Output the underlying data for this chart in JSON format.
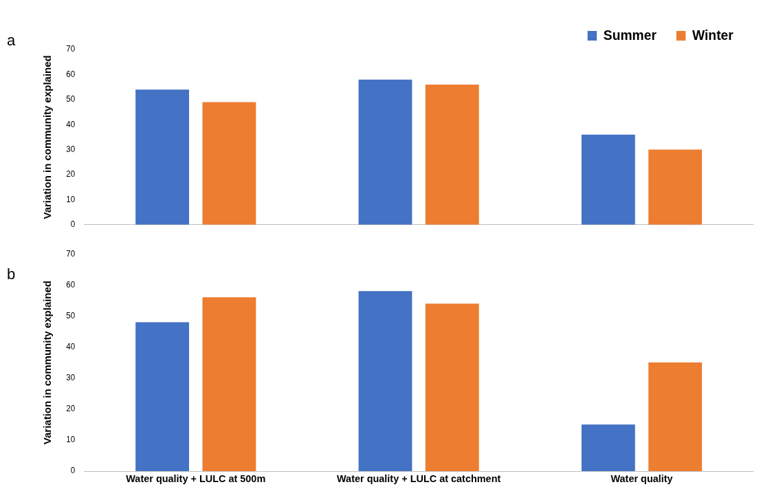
{
  "chart_data": [
    {
      "type": "bar",
      "title": "a",
      "ylabel": "Variation in community explained",
      "categories": [
        null,
        null,
        null
      ],
      "series": [
        {
          "name": "Summer",
          "color": "#4472c4",
          "values": [
            54,
            58,
            36
          ]
        },
        {
          "name": "Winter",
          "color": "#ed7d31",
          "values": [
            49,
            56,
            30
          ]
        }
      ],
      "ylim": [
        0,
        70
      ],
      "yticks": [
        0,
        10,
        20,
        30,
        40,
        50,
        60,
        70
      ],
      "grid": false,
      "legend": "top right",
      "tick_labels": "y"
    },
    {
      "type": "bar",
      "title": "b",
      "ylabel": "Variation in community explained",
      "categories": [
        "Water quality + LULC at 500m",
        "Water quality + LULC at catchment",
        "Water quality"
      ],
      "series": [
        {
          "color": "#4472c4",
          "values": [
            48,
            58,
            15
          ]
        },
        {
          "color": "#ed7d31",
          "values": [
            56,
            54,
            35
          ]
        }
      ],
      "ylim": [
        0,
        70
      ],
      "yticks": [
        0,
        10,
        20,
        30,
        40,
        50,
        60,
        70
      ],
      "grid": false,
      "legend": false
    }
  ]
}
